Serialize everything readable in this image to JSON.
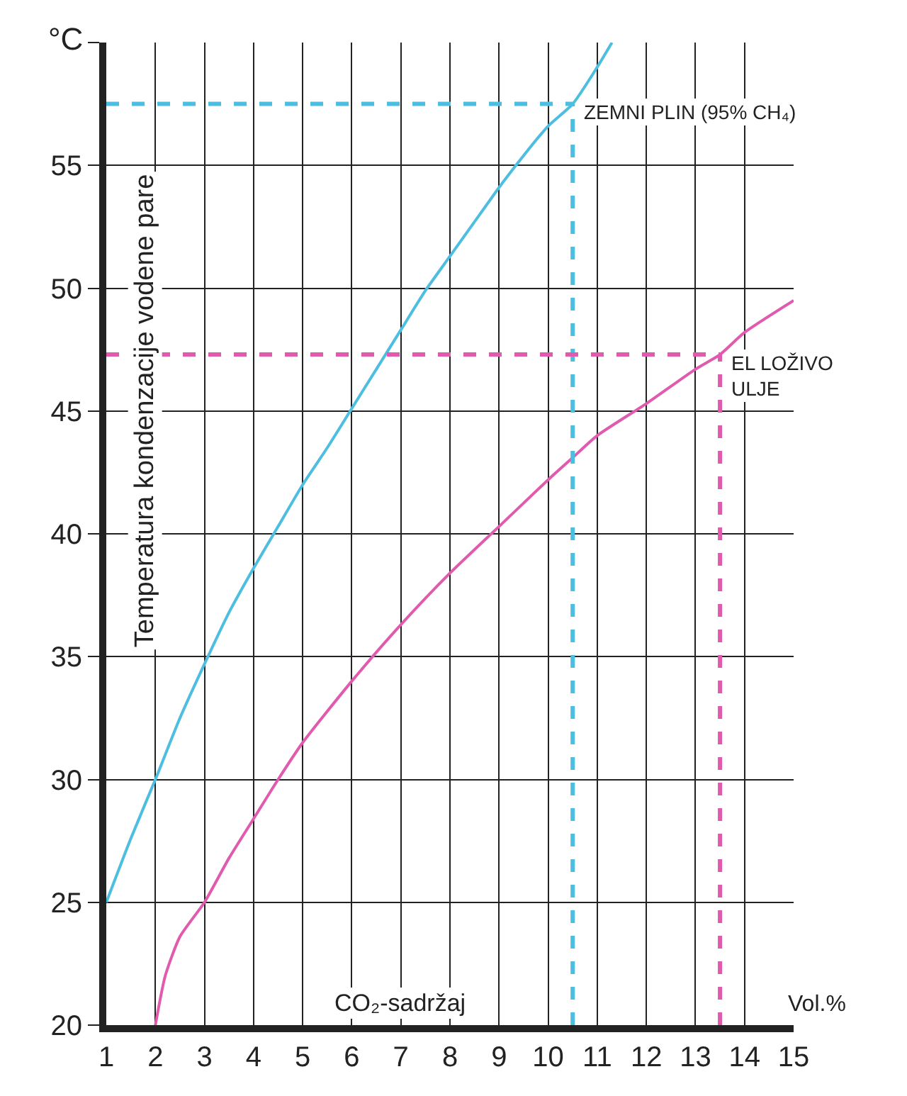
{
  "chart_data": {
    "type": "line",
    "ylabel": "Temperatura kondenzacije vodene pare",
    "xlabel": "CO₂-sadržaj",
    "annotations": [
      "°C",
      "Vol.%",
      {
        "text": "ZEMNI PLIN (95% CH₄)",
        "x": 10.5,
        "y": 57.5
      },
      {
        "text": "EL LOŽIVO\nULJE",
        "x": 13.5,
        "y": 47.3
      }
    ],
    "xlim": [
      1,
      15
    ],
    "xticks": [
      1,
      2,
      3,
      4,
      5,
      6,
      7,
      8,
      9,
      10,
      11,
      12,
      13,
      14,
      15
    ],
    "ylim": [
      20,
      60
    ],
    "yticks": [
      20,
      25,
      30,
      35,
      40,
      45,
      50,
      55,
      {
        "value": 60,
        "label": null
      }
    ],
    "grid": true,
    "marker": "none",
    "line_style": "solid",
    "series": [
      {
        "color": "#4dbde0",
        "x": [
          1,
          1.5,
          2,
          2.5,
          3,
          3.5,
          4,
          4.5,
          5,
          5.5,
          6,
          6.5,
          7,
          7.5,
          8,
          8.5,
          9,
          9.5,
          10,
          10.5,
          11,
          11.3
        ],
        "values": [
          25,
          27.6,
          30,
          32.5,
          34.7,
          36.8,
          38.6,
          40.3,
          42,
          43.5,
          45.1,
          46.7,
          48.3,
          49.9,
          51.3,
          52.7,
          54.1,
          55.4,
          56.6,
          57.5,
          59,
          60
        ]
      },
      {
        "color": "#e05aae",
        "x": [
          2,
          2.2,
          2.5,
          3,
          3.5,
          4,
          4.5,
          5,
          6,
          7,
          8,
          9,
          10,
          10.5,
          11,
          12,
          13,
          13.5,
          14,
          15
        ],
        "values": [
          20,
          22,
          23.6,
          25,
          26.8,
          28.4,
          30,
          31.5,
          34,
          36.3,
          38.4,
          40.3,
          42.2,
          43.1,
          44,
          45.3,
          46.7,
          47.3,
          48.2,
          49.5
        ]
      }
    ],
    "ref_lines": [
      {
        "axis": "y",
        "value": 57.5,
        "color": "#4dbde0",
        "line_style": "dashed"
      },
      {
        "axis": "x",
        "value": 10.5,
        "color": "#4dbde0",
        "line_style": "dashed"
      },
      {
        "axis": "y",
        "value": 47.3,
        "color": "#e05aae",
        "line_style": "dashed"
      },
      {
        "axis": "x",
        "value": 13.5,
        "color": "#e05aae",
        "line_style": "dashed"
      }
    ]
  }
}
